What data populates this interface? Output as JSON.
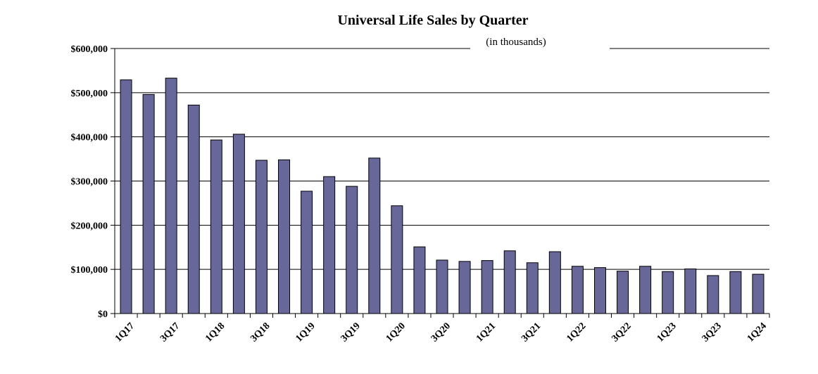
{
  "chart_data": {
    "type": "bar",
    "title": "Universal Life Sales by Quarter",
    "subtitle": "(in thousands)",
    "categories": [
      "1Q17",
      "2Q17",
      "3Q17",
      "4Q17",
      "1Q18",
      "2Q18",
      "3Q18",
      "4Q18",
      "1Q19",
      "2Q19",
      "3Q19",
      "4Q19",
      "1Q20",
      "2Q20",
      "3Q20",
      "4Q20",
      "1Q21",
      "2Q21",
      "3Q21",
      "4Q21",
      "1Q22",
      "2Q22",
      "3Q22",
      "4Q22",
      "1Q23",
      "2Q23",
      "3Q23",
      "4Q23",
      "1Q24"
    ],
    "values": [
      529000,
      496000,
      533000,
      472000,
      393000,
      406000,
      347000,
      348000,
      277000,
      310000,
      288000,
      352000,
      244000,
      151000,
      121000,
      118000,
      120000,
      142000,
      115000,
      140000,
      107000,
      104000,
      96000,
      107000,
      95000,
      101000,
      86000,
      95000,
      89000
    ],
    "x_tick_labels": [
      "1Q17",
      "3Q17",
      "1Q18",
      "3Q18",
      "1Q19",
      "3Q19",
      "1Q20",
      "3Q20",
      "1Q21",
      "3Q21",
      "1Q22",
      "3Q22",
      "1Q23",
      "3Q23",
      "1Q24"
    ],
    "y_tick_labels": [
      "$0",
      "$100,000",
      "$200,000",
      "$300,000",
      "$400,000",
      "$500,000",
      "$600,000"
    ],
    "y_ticks": [
      0,
      100000,
      200000,
      300000,
      400000,
      500000,
      600000
    ],
    "ylim": [
      0,
      600000
    ],
    "xlabel": "",
    "ylabel": "",
    "grid": true,
    "legend": "none",
    "bar_color": "#67679a"
  }
}
